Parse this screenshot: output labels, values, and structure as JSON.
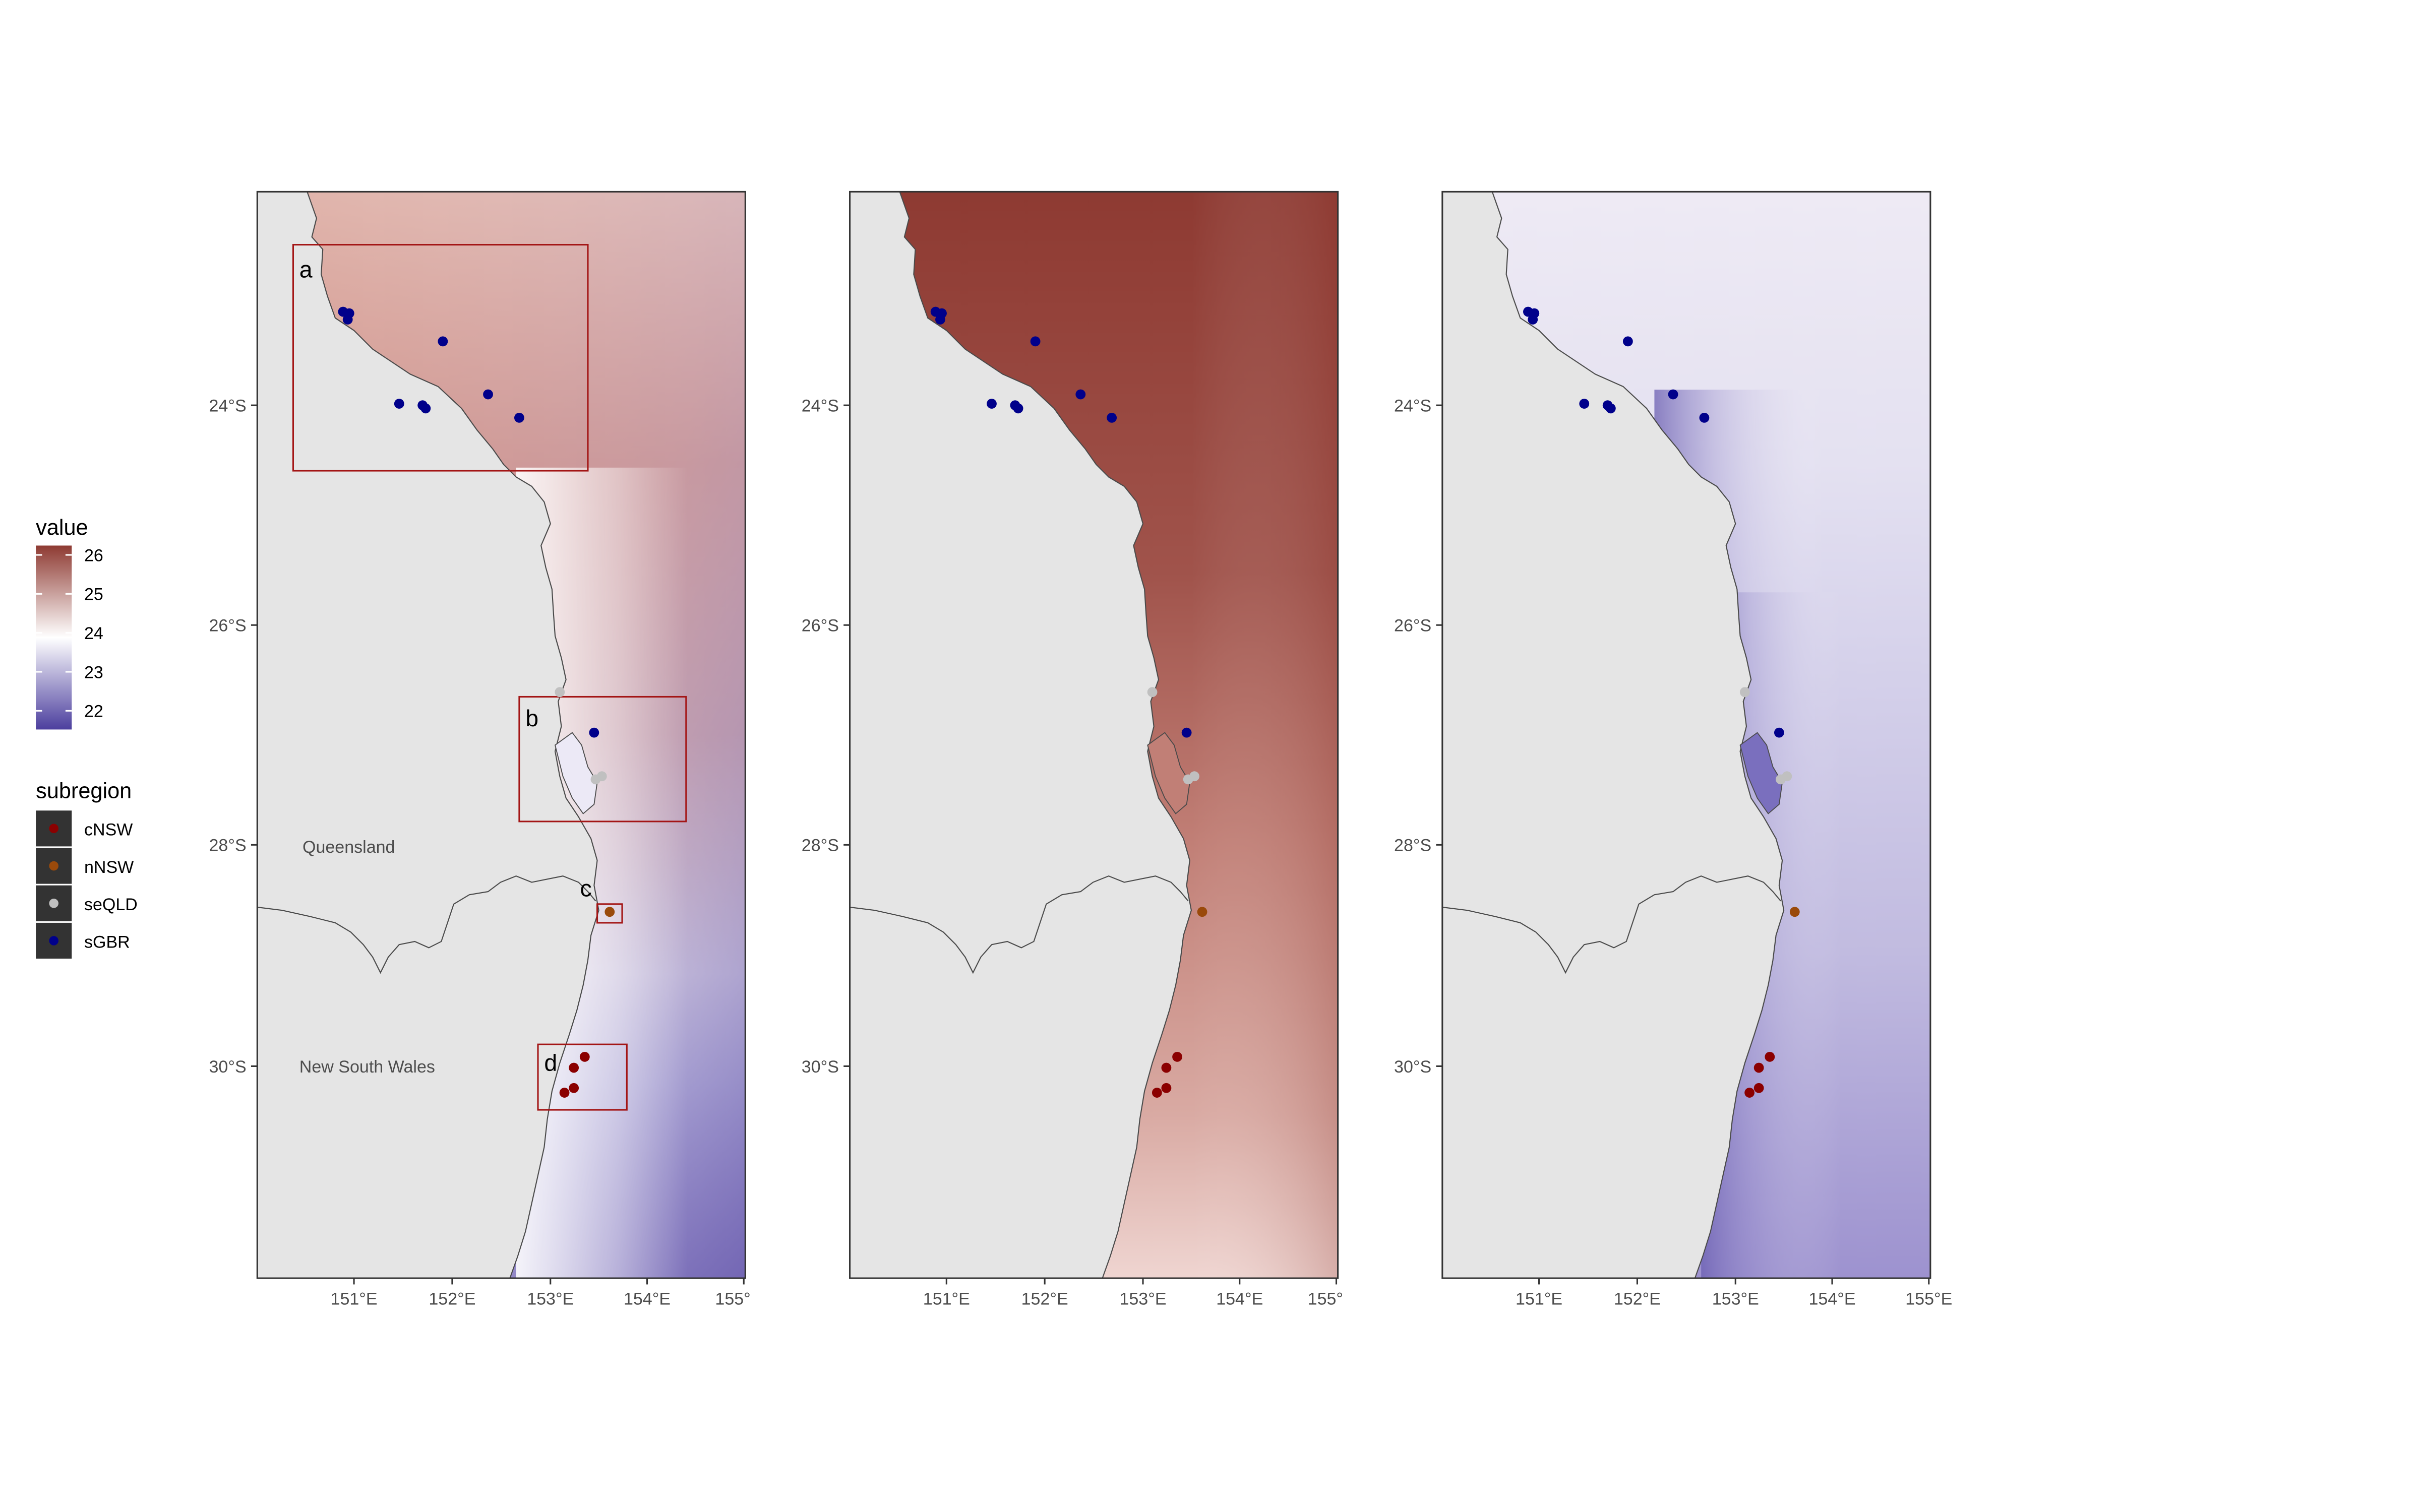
{
  "legend": {
    "value_title": "value",
    "value_ticks": [
      "26",
      "25",
      "24",
      "23",
      "22"
    ],
    "subregion_title": "subregion",
    "subregions": [
      {
        "name": "cNSW",
        "color": "#8b0000"
      },
      {
        "name": "nNSW",
        "color": "#9a4a0b"
      },
      {
        "name": "seQLD",
        "color": "#c0c0c0"
      },
      {
        "name": "sGBR",
        "color": "#00008b"
      }
    ]
  },
  "colors": {
    "high": "#8e3a32",
    "mid": "#ffffff",
    "low": "#4c3f9e",
    "land": "#e5e5e5",
    "coast": "#4a4a4a",
    "inset_box": "#a31515"
  },
  "axes": {
    "lat_ticks": [
      "24°S",
      "26°S",
      "28°S",
      "30°S"
    ],
    "lon_ticks_clipped": [
      "151°E",
      "152°E",
      "153°E",
      "154°E",
      "155°"
    ],
    "lon_ticks_full": [
      "151°E",
      "152°E",
      "153°E",
      "154°E",
      "155°E"
    ]
  },
  "map_labels": {
    "queensland": "Queensland",
    "nsw": "New South Wales"
  },
  "insets": [
    {
      "label": "a"
    },
    {
      "label": "b"
    },
    {
      "label": "c"
    },
    {
      "label": "d"
    }
  ],
  "panels": [
    {
      "id": "panel-1",
      "theme": "anomaly",
      "show_insets": true
    },
    {
      "id": "panel-2",
      "theme": "warm",
      "show_insets": false
    },
    {
      "id": "panel-3",
      "theme": "cool",
      "show_insets": false
    }
  ]
}
